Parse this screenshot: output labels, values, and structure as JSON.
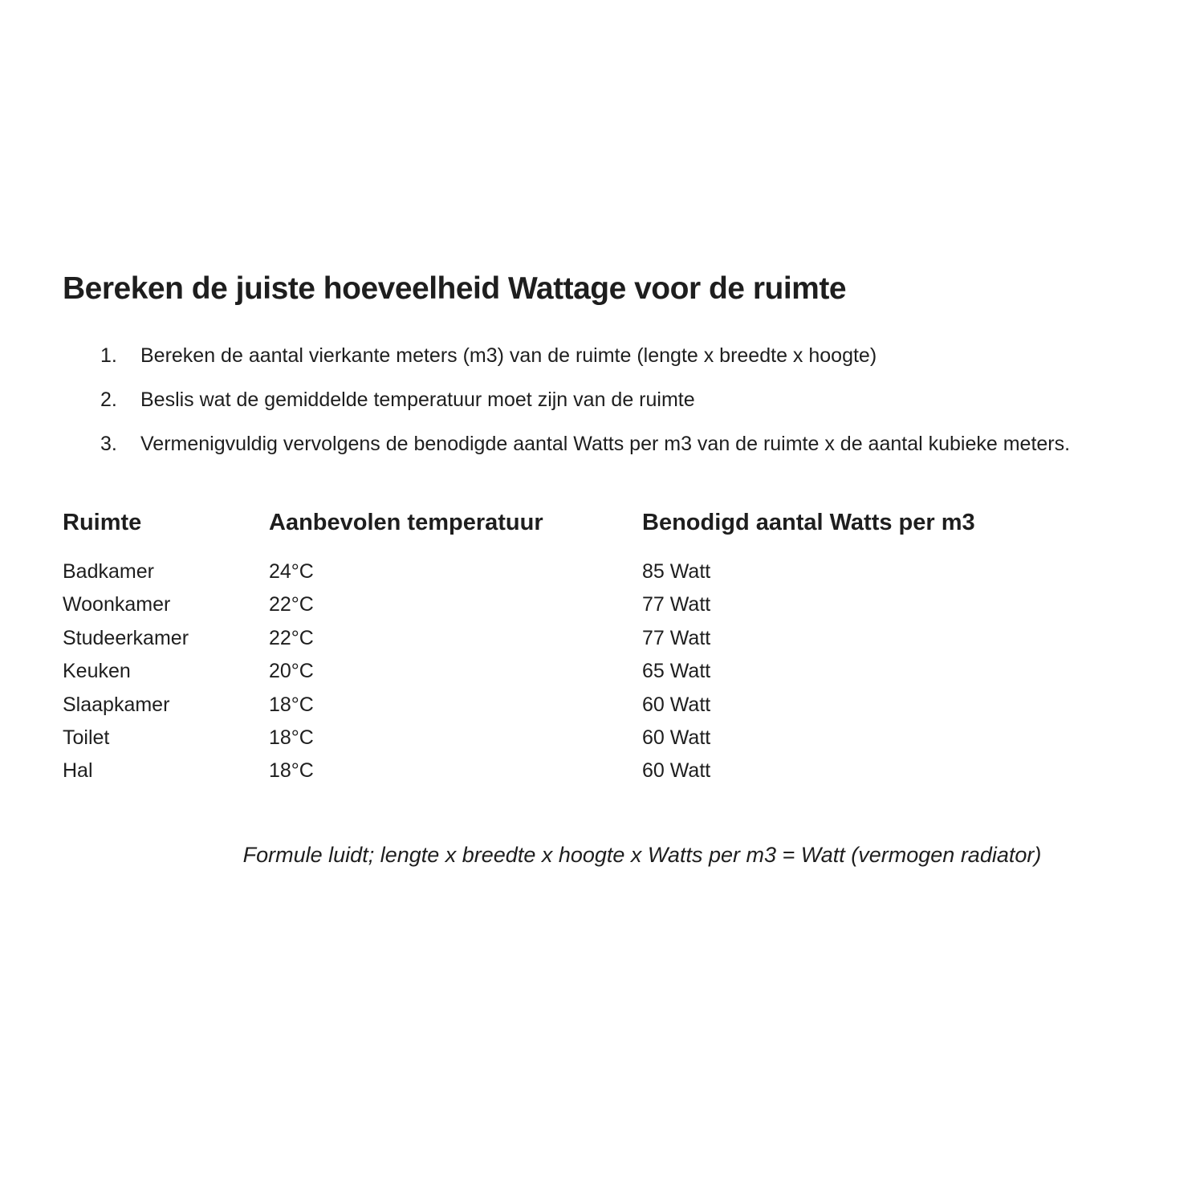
{
  "document": {
    "title": "Bereken de juiste hoeveelheid Wattage voor de ruimte",
    "instructions": {
      "items": [
        {
          "num": "1.",
          "text": "Bereken de aantal vierkante meters (m3) van de ruimte (lengte x breedte x hoogte)"
        },
        {
          "num": "2.",
          "text": "Beslis wat de gemiddelde temperatuur moet zijn van de ruimte"
        },
        {
          "num": "3.",
          "text": "Vermenigvuldig vervolgens de benodigde aantal Watts per m3 van de ruimte x de aantal kubieke meters."
        }
      ]
    },
    "table": {
      "headers": [
        "Ruimte",
        "Aanbevolen temperatuur",
        "Benodigd aantal Watts per m3"
      ],
      "rows": [
        [
          "Badkamer",
          "24°C",
          "85 Watt"
        ],
        [
          "Woonkamer",
          "22°C",
          "77 Watt"
        ],
        [
          "Studeerkamer",
          "22°C",
          "77 Watt"
        ],
        [
          "Keuken",
          "20°C",
          "65 Watt"
        ],
        [
          "Slaapkamer",
          "18°C",
          "60 Watt"
        ],
        [
          "Toilet",
          "18°C",
          "60 Watt"
        ],
        [
          "Hal",
          "18°C",
          "60 Watt"
        ]
      ]
    },
    "formula": "Formule luidt; lengte x breedte x hoogte x Watts per m3 = Watt (vermogen radiator)",
    "colors": {
      "text": "#1e1e1e",
      "background": "#ffffff"
    }
  }
}
